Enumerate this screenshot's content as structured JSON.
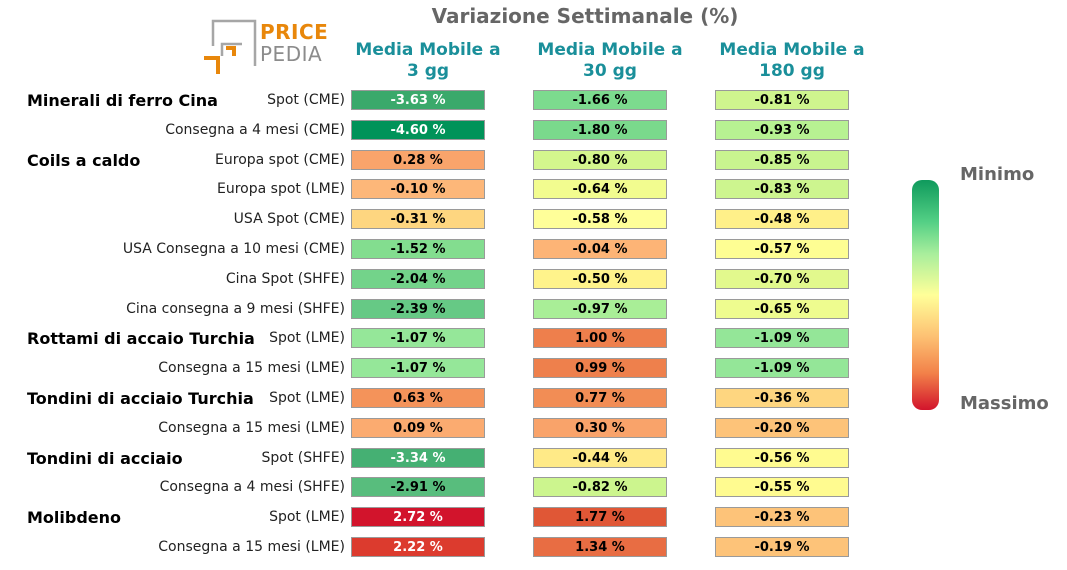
{
  "title": "Variazione Settimanale (%)",
  "logo": {
    "price": "PRICE",
    "pedia": "PEDIA"
  },
  "columns": [
    [
      "Media Mobile a",
      "3 gg"
    ],
    [
      "Media Mobile a",
      "30 gg"
    ],
    [
      "Media Mobile a",
      "180 gg"
    ]
  ],
  "legend": {
    "min_label": "Minimo",
    "max_label": "Massimo"
  },
  "colors": {
    "header": "#1a8f9a",
    "title": "#666666",
    "min": "#0f9a5c",
    "mid": "#ffff99",
    "max": "#d2142c"
  },
  "chart_data": {
    "type": "heatmap",
    "title": "Variazione Settimanale (%)",
    "columns": [
      "Media Mobile a 3 gg",
      "Media Mobile a 30 gg",
      "Media Mobile a 180 gg"
    ],
    "groups": [
      "Minerali di ferro Cina",
      "Coils a caldo",
      "Rottami di accaio Turchia",
      "Tondini di acciaio Turchia",
      "Tondini di acciaio",
      "Molibdeno"
    ],
    "rows": [
      {
        "group": "Minerali di ferro Cina",
        "label": "Spot (CME)",
        "values": [
          -3.63,
          -1.66,
          -0.81
        ],
        "text": [
          "-3.63 %",
          "-1.66 %",
          "-0.81 %"
        ],
        "colors": [
          "#3aa96b",
          "#7cdb8e",
          "#cff58e"
        ]
      },
      {
        "group": "",
        "label": "Consegna a 4 mesi (CME)",
        "values": [
          -4.6,
          -1.8,
          -0.93
        ],
        "text": [
          "-4.60 %",
          "-1.80 %",
          "-0.93 %"
        ],
        "colors": [
          "#009359",
          "#7ad98c",
          "#b7f292"
        ]
      },
      {
        "group": "Coils a caldo",
        "label": "Europa spot (CME)",
        "values": [
          0.28,
          -0.8,
          -0.85
        ],
        "text": [
          "0.28 %",
          "-0.80 %",
          "-0.85 %"
        ],
        "colors": [
          "#f9a46b",
          "#d4f68d",
          "#c9f48f"
        ]
      },
      {
        "group": "",
        "label": "Europa spot (LME)",
        "values": [
          -0.1,
          -0.64,
          -0.83
        ],
        "text": [
          "-0.10 %",
          "-0.64 %",
          "-0.83 %"
        ],
        "colors": [
          "#fdb779",
          "#f2fc8f",
          "#cdf58f"
        ]
      },
      {
        "group": "",
        "label": "USA Spot (CME)",
        "values": [
          -0.31,
          -0.58,
          -0.48
        ],
        "text": [
          "-0.31 %",
          "-0.58 %",
          "-0.48 %"
        ],
        "colors": [
          "#fed680",
          "#ffff99",
          "#fff089"
        ]
      },
      {
        "group": "",
        "label": "USA Consegna a 10 mesi (CME)",
        "values": [
          -1.52,
          -0.04,
          -0.57
        ],
        "text": [
          "-1.52 %",
          "-0.04 %",
          "-0.57 %"
        ],
        "colors": [
          "#83dd8f",
          "#fdb476",
          "#fefe93"
        ]
      },
      {
        "group": "",
        "label": "Cina Spot (SHFE)",
        "values": [
          -2.04,
          -0.5,
          -0.7
        ],
        "text": [
          "-2.04 %",
          "-0.50 %",
          "-0.70 %"
        ],
        "colors": [
          "#73d38a",
          "#fff38b",
          "#e2f98d"
        ]
      },
      {
        "group": "",
        "label": "Cina consegna a 9 mesi (SHFE)",
        "values": [
          -2.39,
          -0.97,
          -0.65
        ],
        "text": [
          "-2.39 %",
          "-0.97 %",
          "-0.65 %"
        ],
        "colors": [
          "#66c985",
          "#a9ee97",
          "#eefc8f"
        ]
      },
      {
        "group": "Rottami di accaio Turchia",
        "label": "Spot (LME)",
        "values": [
          -1.07,
          1.0,
          -1.09
        ],
        "text": [
          "-1.07 %",
          "1.00 %",
          "-1.09 %"
        ],
        "colors": [
          "#95e799",
          "#ee7f4c",
          "#94e698"
        ]
      },
      {
        "group": "",
        "label": "Consegna a 15 mesi (LME)",
        "values": [
          -1.07,
          0.99,
          -1.09
        ],
        "text": [
          "-1.07 %",
          "0.99 %",
          "-1.09 %"
        ],
        "colors": [
          "#95e799",
          "#ee804c",
          "#94e698"
        ]
      },
      {
        "group": "Tondini di acciaio Turchia",
        "label": "Spot (LME)",
        "values": [
          0.63,
          0.77,
          -0.36
        ],
        "text": [
          "0.63 %",
          "0.77 %",
          "-0.36 %"
        ],
        "colors": [
          "#f4935a",
          "#f28d55",
          "#fed680"
        ]
      },
      {
        "group": "",
        "label": "Consegna a 15 mesi (LME)",
        "values": [
          0.09,
          0.3,
          -0.2
        ],
        "text": [
          "0.09 %",
          "0.30 %",
          "-0.20 %"
        ],
        "colors": [
          "#fbab70",
          "#f9a36a",
          "#fdc379"
        ]
      },
      {
        "group": "Tondini di acciaio",
        "label": "Spot (SHFE)",
        "values": [
          -3.34,
          -0.44,
          -0.56
        ],
        "text": [
          "-3.34 %",
          "-0.44 %",
          "-0.56 %"
        ],
        "colors": [
          "#45b073",
          "#ffea87",
          "#fffb90"
        ]
      },
      {
        "group": "",
        "label": "Consegna a 4 mesi (SHFE)",
        "values": [
          -2.91,
          -0.82,
          -0.55
        ],
        "text": [
          "-2.91 %",
          "-0.82 %",
          "-0.55 %"
        ],
        "colors": [
          "#58bd7d",
          "#ccf58e",
          "#fffb90"
        ]
      },
      {
        "group": "Molibdeno",
        "label": "Spot (LME)",
        "values": [
          2.72,
          1.77,
          -0.23
        ],
        "text": [
          "2.72 %",
          "1.77 %",
          "-0.23 %"
        ],
        "colors": [
          "#d2142c",
          "#e05736",
          "#fdc379"
        ]
      },
      {
        "group": "",
        "label": "Consegna a 15 mesi (LME)",
        "values": [
          2.22,
          1.34,
          -0.19
        ],
        "text": [
          "2.22 %",
          "1.34 %",
          "-0.19 %"
        ],
        "colors": [
          "#dc3b2e",
          "#e86d43",
          "#fdc379"
        ]
      }
    ]
  }
}
